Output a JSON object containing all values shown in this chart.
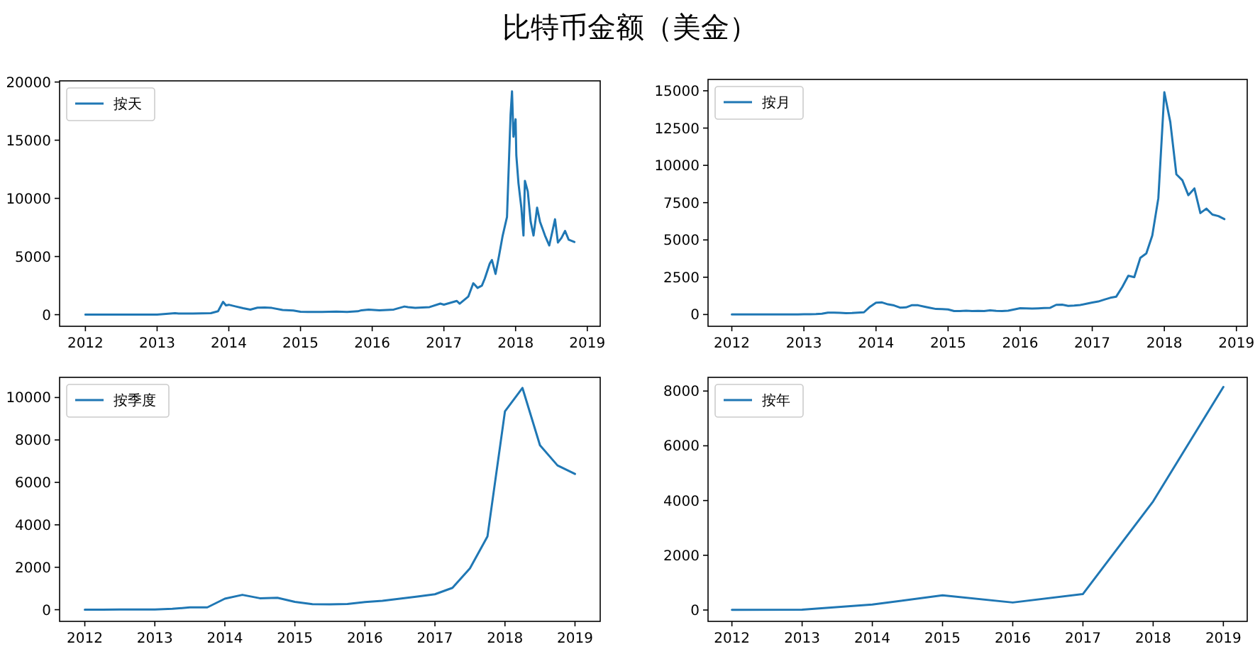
{
  "chart_data": [
    {
      "type": "line",
      "title": "比特币金额（美金）",
      "xlim": [
        2011.64,
        2019.18
      ],
      "ylim": [
        -1000,
        20100
      ],
      "xticks": [
        2012,
        2013,
        2014,
        2015,
        2016,
        2017,
        2018,
        2019
      ],
      "yticks": [
        0,
        5000,
        10000,
        15000,
        20000
      ],
      "legend": "top left",
      "series": [
        {
          "name": "按天",
          "color": "#1f77b4",
          "x": [
            2012.0,
            2012.5,
            2013.0,
            2013.25,
            2013.3,
            2013.5,
            2013.75,
            2013.85,
            2013.92,
            2013.96,
            2014.0,
            2014.1,
            2014.2,
            2014.3,
            2014.4,
            2014.5,
            2014.6,
            2014.75,
            2014.9,
            2015.0,
            2015.1,
            2015.3,
            2015.5,
            2015.65,
            2015.8,
            2015.85,
            2015.95,
            2016.1,
            2016.3,
            2016.45,
            2016.5,
            2016.6,
            2016.8,
            2016.95,
            2017.0,
            2017.18,
            2017.22,
            2017.34,
            2017.41,
            2017.47,
            2017.53,
            2017.57,
            2017.64,
            2017.67,
            2017.72,
            2017.77,
            2017.82,
            2017.88,
            2017.91,
            2017.93,
            2017.95,
            2017.97,
            2018.0,
            2018.01,
            2018.04,
            2018.08,
            2018.11,
            2018.13,
            2018.17,
            2018.21,
            2018.25,
            2018.3,
            2018.34,
            2018.41,
            2018.47,
            2018.55,
            2018.59,
            2018.64,
            2018.69,
            2018.74,
            2018.82
          ],
          "values": [
            5,
            7,
            13,
            130,
            100,
            90,
            130,
            300,
            1100,
            800,
            850,
            700,
            550,
            430,
            600,
            620,
            580,
            400,
            360,
            250,
            230,
            230,
            260,
            230,
            290,
            380,
            430,
            380,
            440,
            700,
            650,
            580,
            650,
            950,
            860,
            1180,
            940,
            1550,
            2700,
            2300,
            2500,
            3100,
            4400,
            4700,
            3500,
            5100,
            6800,
            8400,
            13700,
            17200,
            19200,
            15300,
            16800,
            13700,
            11300,
            9200,
            6800,
            11500,
            10600,
            8000,
            6800,
            9200,
            8000,
            6800,
            5950,
            8200,
            6200,
            6600,
            7200,
            6450,
            6250
          ]
        }
      ]
    },
    {
      "type": "line",
      "xlim": [
        2011.67,
        2019.15
      ],
      "ylim": [
        -790,
        15760
      ],
      "xticks": [
        2012,
        2013,
        2014,
        2015,
        2016,
        2017,
        2018,
        2019
      ],
      "yticks": [
        0,
        2500,
        5000,
        7500,
        10000,
        12500,
        15000
      ],
      "legend": "top left",
      "series": [
        {
          "name": "按月",
          "color": "#1f77b4",
          "x": [
            2012.0,
            2012.083,
            2012.167,
            2012.25,
            2012.333,
            2012.417,
            2012.5,
            2012.583,
            2012.667,
            2012.75,
            2012.833,
            2012.917,
            2013.0,
            2013.083,
            2013.167,
            2013.25,
            2013.333,
            2013.417,
            2013.5,
            2013.583,
            2013.667,
            2013.75,
            2013.833,
            2013.917,
            2014.0,
            2014.083,
            2014.167,
            2014.25,
            2014.333,
            2014.417,
            2014.5,
            2014.583,
            2014.667,
            2014.75,
            2014.833,
            2014.917,
            2015.0,
            2015.083,
            2015.167,
            2015.25,
            2015.333,
            2015.417,
            2015.5,
            2015.583,
            2015.667,
            2015.75,
            2015.833,
            2015.917,
            2016.0,
            2016.083,
            2016.167,
            2016.25,
            2016.333,
            2016.417,
            2016.5,
            2016.583,
            2016.667,
            2016.75,
            2016.833,
            2016.917,
            2017.0,
            2017.083,
            2017.167,
            2017.25,
            2017.333,
            2017.417,
            2017.5,
            2017.583,
            2017.667,
            2017.75,
            2017.833,
            2017.917,
            2018.0,
            2018.083,
            2018.167,
            2018.25,
            2018.333,
            2018.417,
            2018.5,
            2018.583,
            2018.667,
            2018.75,
            2018.833
          ],
          "values": [
            6,
            6,
            5,
            5,
            5,
            5,
            6,
            7,
            10,
            11,
            11,
            11,
            13,
            15,
            25,
            50,
            130,
            120,
            110,
            85,
            100,
            125,
            150,
            520,
            790,
            810,
            680,
            610,
            460,
            480,
            630,
            620,
            530,
            450,
            370,
            360,
            340,
            230,
            230,
            260,
            230,
            240,
            235,
            280,
            250,
            235,
            260,
            340,
            420,
            410,
            400,
            415,
            430,
            450,
            650,
            660,
            580,
            600,
            640,
            720,
            800,
            870,
            1000,
            1120,
            1200,
            1850,
            2600,
            2500,
            3800,
            4100,
            5300,
            7800,
            14900,
            12900,
            9400,
            9000,
            8000,
            8450,
            6800,
            7100,
            6700,
            6600,
            6400
          ]
        }
      ]
    },
    {
      "type": "line",
      "xlim": [
        2011.64,
        2019.36
      ],
      "ylim": [
        -550,
        10950
      ],
      "xticks": [
        2012,
        2013,
        2014,
        2015,
        2016,
        2017,
        2018,
        2019
      ],
      "yticks": [
        0,
        2000,
        4000,
        6000,
        8000,
        10000
      ],
      "legend": "top left",
      "series": [
        {
          "name": "按季度",
          "color": "#1f77b4",
          "x": [
            2012.0,
            2012.25,
            2012.5,
            2012.75,
            2013.0,
            2013.25,
            2013.5,
            2013.75,
            2014.0,
            2014.25,
            2014.5,
            2014.75,
            2015.0,
            2015.25,
            2015.5,
            2015.75,
            2016.0,
            2016.25,
            2016.5,
            2016.75,
            2017.0,
            2017.25,
            2017.5,
            2017.75,
            2018.0,
            2018.25,
            2018.5,
            2018.75,
            2019.0
          ],
          "values": [
            5,
            5,
            8,
            10,
            13,
            40,
            110,
            110,
            520,
            700,
            540,
            560,
            370,
            260,
            250,
            270,
            360,
            420,
            520,
            620,
            730,
            1030,
            1950,
            3450,
            9350,
            10450,
            7750,
            6800,
            6400
          ]
        }
      ]
    },
    {
      "type": "line",
      "xlim": [
        2011.66,
        2019.34
      ],
      "ylim": [
        -415,
        8500
      ],
      "xticks": [
        2012,
        2013,
        2014,
        2015,
        2016,
        2017,
        2018,
        2019
      ],
      "yticks": [
        0,
        2000,
        4000,
        6000,
        8000
      ],
      "legend": "top left",
      "series": [
        {
          "name": "按年",
          "color": "#1f77b4",
          "x": [
            2012,
            2013,
            2014,
            2015,
            2016,
            2017,
            2018,
            2019
          ],
          "values": [
            5,
            13,
            200,
            535,
            275,
            585,
            3970,
            8150
          ]
        }
      ]
    }
  ]
}
